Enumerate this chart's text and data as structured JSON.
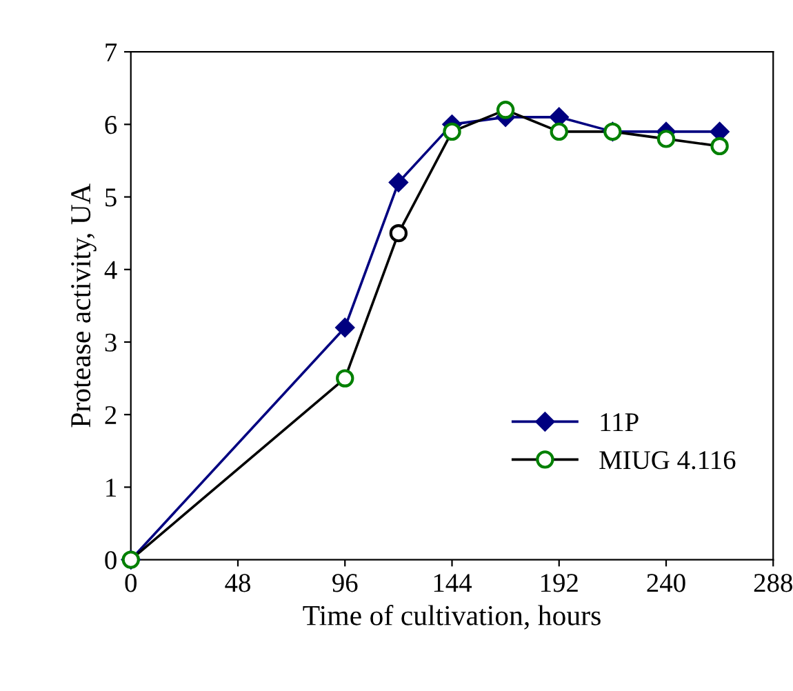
{
  "chart_data": {
    "type": "line",
    "xlabel": "Time of cultivation, hours",
    "ylabel": "Protease activity, UA",
    "xlim": [
      0,
      288
    ],
    "xticks": [
      0,
      48,
      96,
      144,
      192,
      240,
      288
    ],
    "ylim": [
      0,
      7
    ],
    "yticks": [
      0,
      1,
      2,
      3,
      4,
      5,
      6,
      7
    ],
    "grid": false,
    "legend": "bottom right",
    "series": [
      {
        "name": "11P",
        "color": "#000080",
        "marker": "diamond",
        "colors": [
          "#000080",
          "#000080",
          "#000080",
          "#000080",
          "#000080",
          "#000080",
          "#000080",
          "#000080",
          "#000080"
        ],
        "x": [
          0,
          96,
          120,
          144,
          168,
          192,
          216,
          240,
          264
        ],
        "values": [
          0,
          3.2,
          5.2,
          6.0,
          6.1,
          6.1,
          5.9,
          5.9,
          5.9
        ]
      },
      {
        "name": "MIUG 4.116",
        "color": "#000000",
        "marker": "circle",
        "colors": [
          "#008000",
          "#008000",
          "#000000",
          "#008000",
          "#008000",
          "#008000",
          "#008000",
          "#008000",
          "#008000"
        ],
        "x": [
          0,
          96,
          120,
          144,
          168,
          192,
          216,
          240,
          264
        ],
        "values": [
          0,
          2.5,
          4.5,
          5.9,
          6.2,
          5.9,
          5.9,
          5.8,
          5.7
        ]
      }
    ]
  }
}
